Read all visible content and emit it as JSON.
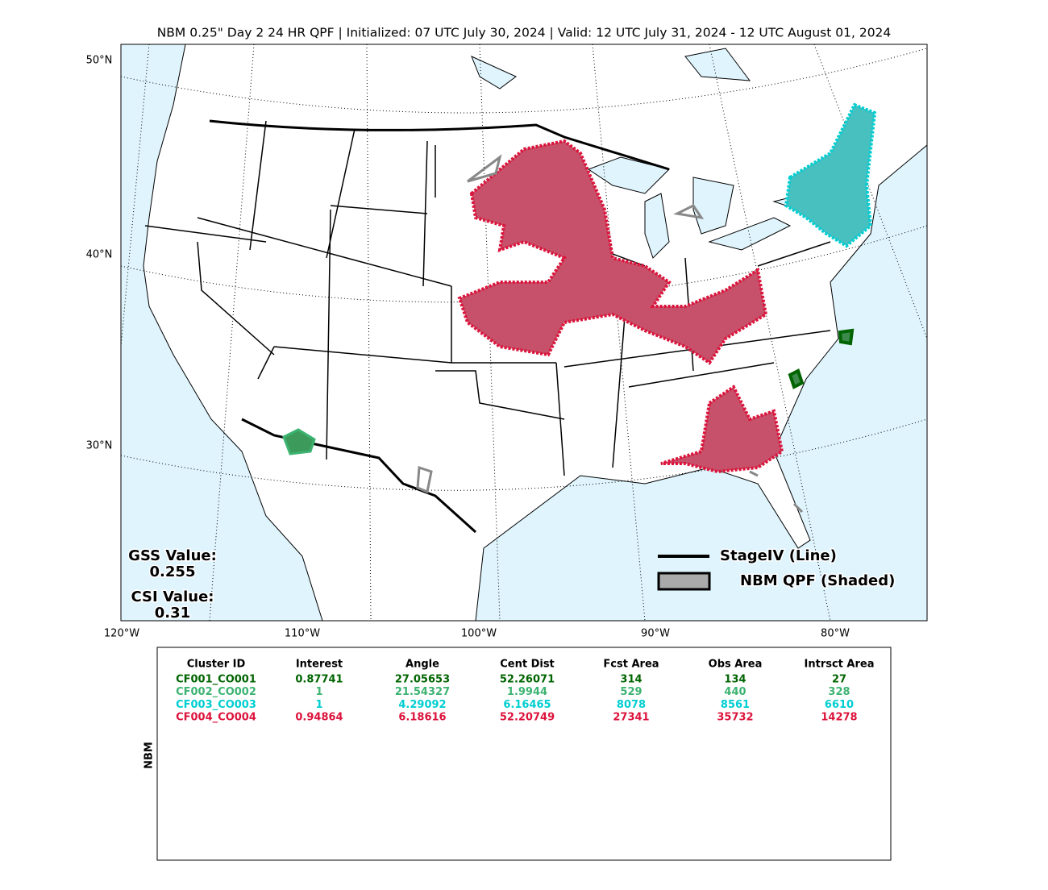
{
  "title": "NBM 0.25\" Day 2 24 HR QPF | Initialized: 07 UTC July 30, 2024 | Valid: 12 UTC July 31, 2024 - 12 UTC August 01, 2024",
  "map": {
    "lat_labels": [
      "50°N",
      "40°N",
      "30°N"
    ],
    "lon_labels": [
      "120°W",
      "110°W",
      "100°W",
      "90°W",
      "80°W"
    ],
    "gss_label": "GSS Value:",
    "gss_value": 0.255,
    "csi_label": "CSI Value:",
    "csi_value": 0.31,
    "legend": [
      "StageIV (Line)",
      "NBM QPF (Shaded)"
    ]
  },
  "table": {
    "side_label": "NBM",
    "header": [
      "Cluster ID",
      "Interest",
      "Angle",
      "Cent Dist",
      "Fcst Area",
      "Obs Area",
      "Intrsct Area"
    ],
    "row_colors": [
      "#006400",
      "#3cb371",
      "#00ced1",
      "#dc143c"
    ],
    "rows": [
      [
        "CF001_CO001",
        0.87741,
        27.05653,
        52.26071,
        314,
        134,
        27
      ],
      [
        "CF002_CO002",
        1,
        21.54327,
        1.9944,
        529,
        440,
        328
      ],
      [
        "CF003_CO003",
        1,
        4.29092,
        6.16465,
        8078,
        8561,
        6610
      ],
      [
        "CF004_CO004",
        0.94864,
        6.18616,
        52.20749,
        27341,
        35732,
        14278
      ]
    ]
  }
}
